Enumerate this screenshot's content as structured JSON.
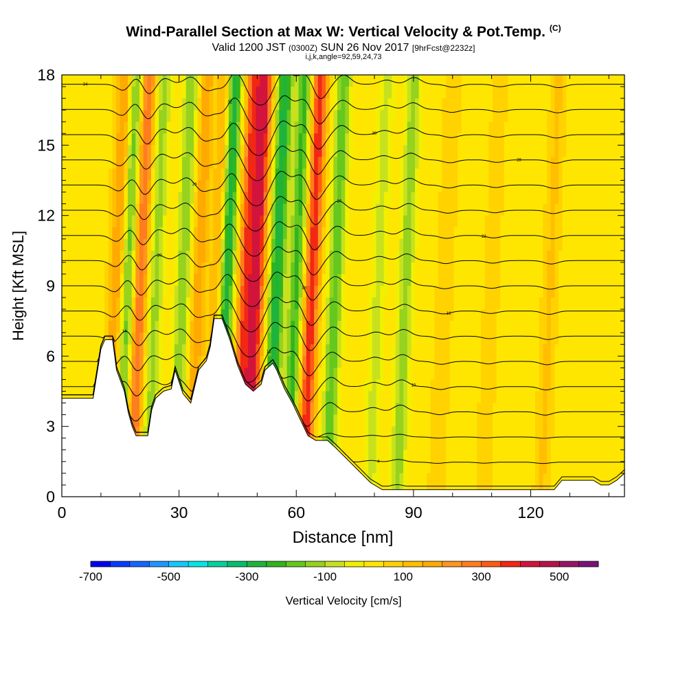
{
  "chart_data": {
    "type": "heatmap",
    "title": "Wind-Parallel Section at Max W: Vertical Velocity & Pot.Temp.",
    "title_mark": "(C)",
    "subtitle": {
      "part1": "Valid 1200 JST",
      "part2": "(0300Z)",
      "part3": "SUN 26 Nov 2017",
      "part4": "[9hrFcst@2232z]"
    },
    "subtitle2": "i,j,k,angle=92,59,24,73",
    "xlabel": "Distance [nm]",
    "ylabel": "Height [Kft MSL]",
    "xlim": [
      0,
      144
    ],
    "ylim": [
      0,
      18
    ],
    "x_ticks": [
      0,
      30,
      60,
      90,
      120
    ],
    "y_ticks": [
      0,
      3,
      6,
      9,
      12,
      15,
      18
    ],
    "colorbar": {
      "label": "Vertical Velocity [cm/s]",
      "min": -700,
      "max": 600,
      "step": 50,
      "tick_labels": [
        "-700",
        "-500",
        "-300",
        "-100",
        "100",
        "300",
        "500"
      ],
      "colors": [
        "#0000f0",
        "#0a3cff",
        "#1466ff",
        "#1e96ff",
        "#14c8ff",
        "#00e6e6",
        "#00d2a0",
        "#00be6e",
        "#1eb43c",
        "#32b41e",
        "#64c81e",
        "#96d21e",
        "#c8e11e",
        "#f0f000",
        "#ffe600",
        "#ffd200",
        "#ffbe00",
        "#ffaa00",
        "#ff961e",
        "#ff7d1e",
        "#ff5a14",
        "#f02814",
        "#d2143c",
        "#b4144b",
        "#961464",
        "#781478"
      ]
    },
    "vertical_velocity_bands": [
      {
        "x": 14,
        "value": 180
      },
      {
        "x": 17,
        "value": -220
      },
      {
        "x": 20,
        "value": 280
      },
      {
        "x": 24,
        "value": -150
      },
      {
        "x": 31,
        "value": -180
      },
      {
        "x": 35,
        "value": 160
      },
      {
        "x": 40,
        "value": 180
      },
      {
        "x": 42,
        "value": -360
      },
      {
        "x": 47,
        "value": 320
      },
      {
        "x": 50,
        "value": 380
      },
      {
        "x": 55,
        "value": -330
      },
      {
        "x": 60,
        "value": -250
      },
      {
        "x": 64,
        "value": 360
      },
      {
        "x": 70,
        "value": -220
      },
      {
        "x": 81,
        "value": -100
      },
      {
        "x": 88,
        "value": -160
      },
      {
        "x": 98,
        "value": 70
      },
      {
        "x": 110,
        "value": 60
      },
      {
        "x": 125,
        "value": 80
      }
    ],
    "terrain_height_kft": [
      [
        0,
        4.2
      ],
      [
        5,
        4.2
      ],
      [
        8,
        4.2
      ],
      [
        10,
        6.3
      ],
      [
        11,
        6.7
      ],
      [
        13,
        6.7
      ],
      [
        14,
        5.4
      ],
      [
        16,
        4.5
      ],
      [
        17,
        3.6
      ],
      [
        18,
        3.0
      ],
      [
        19,
        2.6
      ],
      [
        22,
        2.6
      ],
      [
        23,
        3.7
      ],
      [
        24,
        4.2
      ],
      [
        26,
        4.5
      ],
      [
        28,
        4.6
      ],
      [
        29,
        5.4
      ],
      [
        31,
        4.4
      ],
      [
        33,
        4.0
      ],
      [
        35,
        5.4
      ],
      [
        37,
        5.8
      ],
      [
        38,
        6.4
      ],
      [
        39,
        7.6
      ],
      [
        41,
        7.6
      ],
      [
        43,
        6.7
      ],
      [
        45,
        5.6
      ],
      [
        47,
        4.8
      ],
      [
        49,
        4.5
      ],
      [
        51,
        4.8
      ],
      [
        52,
        5.4
      ],
      [
        54,
        5.7
      ],
      [
        55,
        5.4
      ],
      [
        57,
        4.6
      ],
      [
        59,
        4.0
      ],
      [
        61,
        3.3
      ],
      [
        63,
        2.6
      ],
      [
        65,
        2.4
      ],
      [
        68,
        2.4
      ],
      [
        70,
        2.1
      ],
      [
        73,
        1.6
      ],
      [
        76,
        1.1
      ],
      [
        79,
        0.6
      ],
      [
        82,
        0.3
      ],
      [
        126,
        0.3
      ],
      [
        128,
        0.7
      ],
      [
        136,
        0.7
      ],
      [
        138,
        0.5
      ],
      [
        140,
        0.5
      ],
      [
        142,
        0.7
      ],
      [
        144,
        1.0
      ]
    ],
    "theta_contour_labels": [
      "34",
      "32",
      "30",
      "28",
      "26",
      "24",
      "22",
      "20",
      "18",
      "16",
      "14",
      "12",
      "10",
      "8",
      "6",
      "4",
      "2"
    ]
  }
}
